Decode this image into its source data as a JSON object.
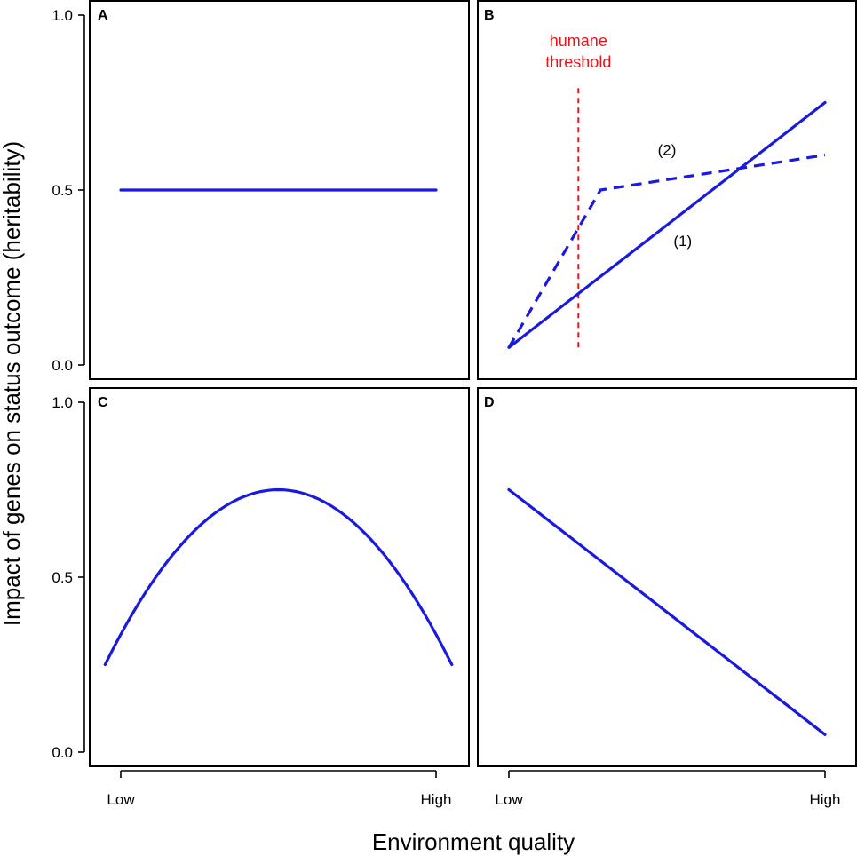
{
  "figure": {
    "ylabel": "Impact of genes on status outcome (heritability)",
    "xlabel": "Environment quality"
  },
  "chart_data": [
    {
      "type": "line",
      "panel": "A",
      "ylim": [
        0,
        1
      ],
      "yticks": [
        "0.0",
        "0.5",
        "1.0"
      ],
      "xlim": [
        0,
        1
      ],
      "series": [
        {
          "name": "heritability",
          "style": "solid",
          "x": [
            0,
            1
          ],
          "y": [
            0.5,
            0.5
          ]
        }
      ]
    },
    {
      "type": "line",
      "panel": "B",
      "ylim": [
        0,
        1
      ],
      "xlim": [
        0,
        1
      ],
      "series": [
        {
          "name": "(1)",
          "style": "solid",
          "x": [
            0,
            1
          ],
          "y": [
            0.05,
            0.75
          ]
        },
        {
          "name": "(2)",
          "style": "dashed",
          "x": [
            0,
            0.29,
            1
          ],
          "y": [
            0.05,
            0.5,
            0.6
          ]
        }
      ],
      "annotations": [
        {
          "text": "(1)",
          "x": 0.55,
          "y": 0.34
        },
        {
          "text": "(2)",
          "x": 0.5,
          "y": 0.6
        }
      ],
      "threshold": {
        "x": 0.22,
        "y_range": [
          0.05,
          0.8
        ],
        "label": [
          "humane",
          "threshold"
        ],
        "color": "#e8141b"
      }
    },
    {
      "type": "line",
      "panel": "C",
      "ylim": [
        0,
        1
      ],
      "yticks": [
        "0.0",
        "0.5",
        "1.0"
      ],
      "xlim": [
        0,
        1
      ],
      "xticks": [
        "Low",
        "High"
      ],
      "series": [
        {
          "name": "heritability",
          "style": "solid",
          "shape": "inverted-parabola",
          "x": [
            -0.05,
            0.5,
            1.05
          ],
          "y": [
            0.25,
            0.75,
            0.25
          ]
        }
      ]
    },
    {
      "type": "line",
      "panel": "D",
      "ylim": [
        0,
        1
      ],
      "xlim": [
        0,
        1
      ],
      "xticks": [
        "Low",
        "High"
      ],
      "series": [
        {
          "name": "heritability",
          "style": "solid",
          "x": [
            0,
            1
          ],
          "y": [
            0.75,
            0.05
          ]
        }
      ]
    }
  ],
  "colors": {
    "line": "#1a1adf",
    "threshold": "#e8141b"
  }
}
